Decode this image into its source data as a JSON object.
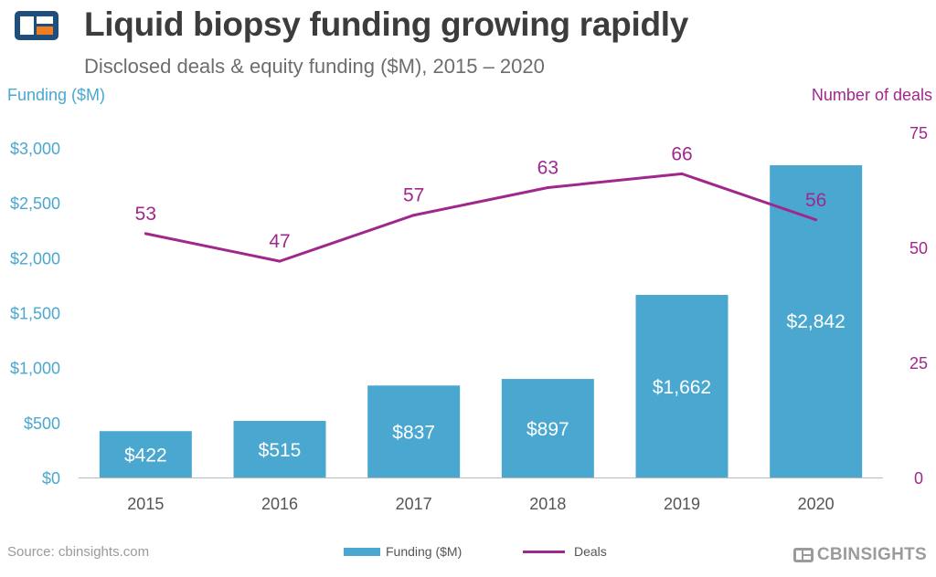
{
  "header": {
    "title": "Liquid biopsy funding growing rapidly",
    "subtitle": "Disclosed deals & equity funding ($M), 2015 – 2020"
  },
  "footer": {
    "source": "Source: cbinsights.com",
    "legend_funding": "Funding ($M)",
    "legend_deals": "Deals",
    "brand": "CBINSIGHTS"
  },
  "colors": {
    "bars": "#4aa8d0",
    "line": "#a0288c",
    "bar_labels": "#ffffff",
    "left_axis": "#4aa8d0",
    "right_axis": "#a0288c",
    "x_axis": "#555555"
  },
  "chart_data": {
    "type": "bar",
    "categories": [
      "2015",
      "2016",
      "2017",
      "2018",
      "2019",
      "2020"
    ],
    "series": [
      {
        "name": "Funding ($M)",
        "type": "bar",
        "axis": "left",
        "values": [
          422,
          515,
          837,
          897,
          1662,
          2842
        ],
        "labels": [
          "$422",
          "$515",
          "$837",
          "$897",
          "$1,662",
          "$2,842"
        ]
      },
      {
        "name": "Deals",
        "type": "line",
        "axis": "right",
        "values": [
          53,
          47,
          57,
          63,
          66,
          56
        ],
        "labels": [
          "53",
          "47",
          "57",
          "63",
          "66",
          "56"
        ]
      }
    ],
    "ylabel_left": "Funding ($M)",
    "ylabel_right": "Number of deals",
    "ylim_left": [
      0,
      3000
    ],
    "ylim_right": [
      0,
      75
    ],
    "yticks_left": [
      "$0",
      "$500",
      "$1,000",
      "$1,500",
      "$2,000",
      "$2,500",
      "$3,000"
    ],
    "yticks_right": [
      "0",
      "25",
      "50",
      "75"
    ],
    "grid": false,
    "legend_position": "bottom"
  }
}
